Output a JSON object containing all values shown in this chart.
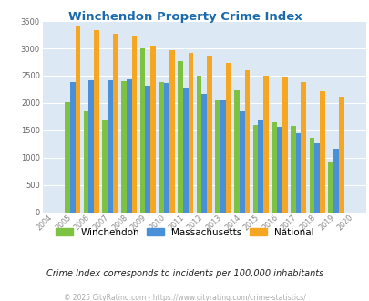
{
  "title": "Winchendon Property Crime Index",
  "years": [
    2004,
    2005,
    2006,
    2007,
    2008,
    2009,
    2010,
    2011,
    2012,
    2013,
    2014,
    2015,
    2016,
    2017,
    2018,
    2019,
    2020
  ],
  "winchendon": [
    null,
    2020,
    1850,
    1680,
    2400,
    3000,
    2390,
    2760,
    2500,
    2050,
    2230,
    1600,
    1650,
    1580,
    1360,
    920,
    null
  ],
  "massachusetts": [
    null,
    2380,
    2410,
    2410,
    2430,
    2320,
    2360,
    2260,
    2160,
    2050,
    1840,
    1680,
    1560,
    1450,
    1260,
    1170,
    null
  ],
  "national": [
    null,
    3420,
    3340,
    3260,
    3210,
    3050,
    2960,
    2920,
    2870,
    2730,
    2600,
    2500,
    2480,
    2380,
    2210,
    2110,
    null
  ],
  "color_winchendon": "#7dc242",
  "color_massachusetts": "#4a90d9",
  "color_national": "#f5a623",
  "ylim": [
    0,
    3500
  ],
  "yticks": [
    0,
    500,
    1000,
    1500,
    2000,
    2500,
    3000,
    3500
  ],
  "bg_color": "#dce9f5",
  "subtitle": "Crime Index corresponds to incidents per 100,000 inhabitants",
  "copyright": "© 2025 CityRating.com - https://www.cityrating.com/crime-statistics/",
  "legend_labels": [
    "Winchendon",
    "Massachusetts",
    "National"
  ],
  "bar_width": 0.28
}
